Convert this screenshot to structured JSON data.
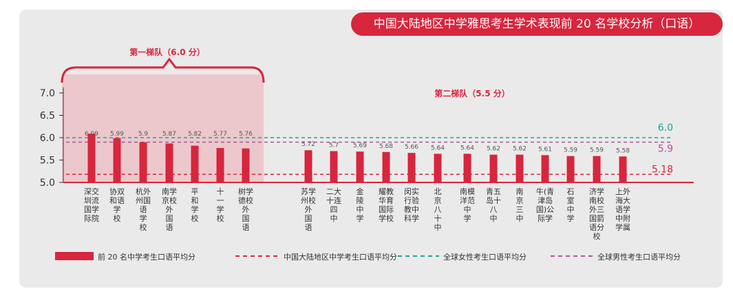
{
  "title": "中国大陆地区中学雅思考生学术表现前 20 名学校分析（口语）",
  "chart_data": {
    "type": "bar",
    "ylim": [
      5.0,
      7.0
    ],
    "y_ticks": [
      "7.0",
      "6.5",
      "6.0",
      "5.5",
      "5.0"
    ],
    "groups": [
      {
        "label": "第一梯队（6.0 分）"
      },
      {
        "label": "第二梯队（5.5 分）"
      }
    ],
    "categories": [
      "深交圳流国学际院",
      "协双和语学校",
      "杭外州国语学校",
      "南学京校外国语",
      "平和学校",
      "十一学校",
      "树学德校外国语",
      "苏学州校外国语",
      "二大十连四中",
      "金陵中学",
      "耀教华育国际学校",
      "闵实行验教中科学",
      "北京八十中",
      "南模洋范中学",
      "青五岛十八中",
      "南京三中",
      "牛(青津岛国)公际学",
      "石室中学",
      "济学南校外三国箭语分校",
      "上外海大语学中附学属"
    ],
    "category_lines": [
      [
        "深交",
        "圳流",
        "国学",
        "际院"
      ],
      [
        "协双",
        "和语",
        "学",
        "校"
      ],
      [
        "杭外",
        "州国",
        "语",
        "学",
        "校"
      ],
      [
        "南学",
        "京校",
        "外",
        "国",
        "语"
      ],
      [
        "平",
        "和",
        "学",
        "校"
      ],
      [
        "十",
        "一",
        "学",
        "校"
      ],
      [
        "树学",
        "德校",
        "外",
        "国",
        "语"
      ],
      [
        "苏学",
        "州校",
        "外",
        "国",
        "语"
      ],
      [
        "二大",
        "十连",
        "四",
        "中"
      ],
      [
        "金",
        "陵",
        "中",
        "学"
      ],
      [
        "耀教",
        "华育",
        "国际",
        "学校"
      ],
      [
        "闵实",
        "行验",
        "教中",
        "科学"
      ],
      [
        "北",
        "京",
        "八",
        "十",
        "中"
      ],
      [
        "南模",
        "洋范",
        "中",
        "学"
      ],
      [
        "青五",
        "岛十",
        "八",
        "中"
      ],
      [
        "南",
        "京",
        "三",
        "中"
      ],
      [
        "牛(青",
        "津岛",
        "国)公",
        "际学"
      ],
      [
        "石",
        "室",
        "中",
        "学"
      ],
      [
        "济学",
        "南校",
        "外三",
        "国箭",
        "语分",
        "校"
      ],
      [
        "上外",
        "海大",
        "语学",
        "中附",
        "学属"
      ]
    ],
    "values": [
      6.09,
      5.99,
      5.9,
      5.87,
      5.82,
      5.77,
      5.76,
      5.72,
      5.7,
      5.69,
      5.68,
      5.66,
      5.64,
      5.64,
      5.62,
      5.62,
      5.61,
      5.59,
      5.59,
      5.58
    ],
    "value_labels": [
      "6.09",
      "5.99",
      "5.9",
      "5.87",
      "5.82",
      "5.77",
      "5.76",
      "5.72",
      "5.7",
      "5.69",
      "5.68",
      "5.66",
      "5.64",
      "5.64",
      "5.62",
      "5.62",
      "5.61",
      "5.59",
      "5.59",
      "5.58"
    ],
    "bar_color": "#d7263d",
    "reference_lines": [
      {
        "name": "中国大陆地区中学考生口语平均分",
        "value": 5.18,
        "label": "5.18",
        "color": "#d7263d"
      },
      {
        "name": "全球女性考生口语平均分",
        "value": 6.0,
        "label": "6.0",
        "color": "#1aa39a"
      },
      {
        "name": "全球男性考生口语平均分",
        "value": 5.9,
        "label": "5.9",
        "color": "#b0509a"
      }
    ],
    "legend": [
      {
        "label": "前 20 名中学考生口语平均分",
        "style": "bar",
        "color": "#d7263d"
      },
      {
        "label": "中国大陆地区中学考生口语平均分",
        "style": "dashed",
        "color": "#d7263d"
      },
      {
        "label": "全球女性考生口语平均分",
        "style": "dashed",
        "color": "#1aa39a"
      },
      {
        "label": "全球男性考生口语平均分",
        "style": "dashed",
        "color": "#b0509a"
      }
    ]
  }
}
